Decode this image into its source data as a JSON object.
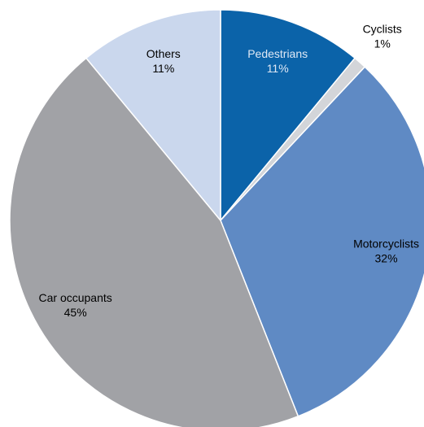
{
  "chart_data": {
    "type": "pie",
    "categories": [
      "Pedestrians",
      "Cyclists",
      "Motorcyclists",
      "Car occupants",
      "Others"
    ],
    "values": [
      11,
      1,
      32,
      45,
      11
    ],
    "value_labels": [
      "11%",
      "1%",
      "32%",
      "45%",
      "11%"
    ],
    "colors": [
      "#0b63a9",
      "#d3d5d9",
      "#5f8ac4",
      "#a1a2a6",
      "#cad7ed"
    ]
  }
}
